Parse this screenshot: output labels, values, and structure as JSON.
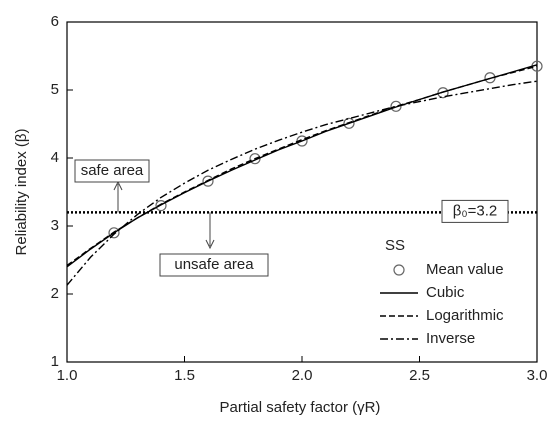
{
  "chart_data": {
    "type": "line",
    "xlabel": "Partial safety factor (γR)",
    "ylabel": "Reliability index (β)",
    "xlim": [
      1,
      3
    ],
    "ylim": [
      1,
      6
    ],
    "xticks": [
      {
        "value": 1,
        "label": "1.0"
      },
      {
        "value": 1.5,
        "label": "1.5"
      },
      {
        "value": 2,
        "label": "2.0"
      },
      {
        "value": 2.5,
        "label": "2.5"
      },
      {
        "value": 3,
        "label": "3.0"
      }
    ],
    "yticks": [
      1,
      2,
      3,
      4,
      5,
      6
    ],
    "legend_title": "SS",
    "legend_position": "lower right",
    "threshold": {
      "value": 3.2,
      "label": "β₀=3.2"
    },
    "annotations": [
      "safe area",
      "unsafe area"
    ],
    "series": [
      {
        "name": "Mean value",
        "kind": "scatter",
        "color": "#666666",
        "x": [
          1.2,
          1.4,
          1.6,
          1.8,
          2.0,
          2.2,
          2.4,
          2.6,
          2.8,
          3.0
        ],
        "values": [
          2.9,
          3.3,
          3.66,
          3.99,
          4.25,
          4.51,
          4.76,
          4.96,
          5.18,
          5.35
        ]
      },
      {
        "name": "Cubic",
        "kind": "line",
        "dash": "solid",
        "color": "#000000",
        "x": [
          1.0,
          1.1,
          1.2,
          1.3,
          1.4,
          1.5,
          1.6,
          1.7,
          1.8,
          1.9,
          2.0,
          2.1,
          2.2,
          2.3,
          2.4,
          2.5,
          2.6,
          2.7,
          2.8,
          2.9,
          3.0
        ],
        "values": [
          2.4,
          2.66,
          2.9,
          3.12,
          3.31,
          3.49,
          3.66,
          3.82,
          3.97,
          4.12,
          4.25,
          4.39,
          4.51,
          4.63,
          4.75,
          4.86,
          4.97,
          5.07,
          5.17,
          5.27,
          5.37
        ]
      },
      {
        "name": "Logarithmic",
        "kind": "line",
        "dash": "dashed",
        "color": "#000000",
        "x": [
          1.0,
          1.1,
          1.2,
          1.3,
          1.4,
          1.5,
          1.6,
          1.7,
          1.8,
          1.9,
          2.0,
          2.1,
          2.2,
          2.3,
          2.4,
          2.5,
          2.6,
          2.7,
          2.8,
          2.9,
          3.0
        ],
        "values": [
          2.42,
          2.67,
          2.91,
          3.12,
          3.32,
          3.5,
          3.67,
          3.84,
          3.99,
          4.13,
          4.27,
          4.4,
          4.52,
          4.64,
          4.76,
          4.86,
          4.97,
          5.07,
          5.17,
          5.26,
          5.35
        ]
      },
      {
        "name": "Inverse",
        "kind": "line",
        "dash": "dashdot",
        "color": "#000000",
        "x": [
          1.0,
          1.1,
          1.2,
          1.3,
          1.4,
          1.5,
          1.6,
          1.7,
          1.8,
          1.9,
          2.0,
          2.1,
          2.2,
          2.3,
          2.4,
          2.5,
          2.6,
          2.7,
          2.8,
          2.9,
          3.0
        ],
        "values": [
          2.13,
          2.54,
          2.88,
          3.17,
          3.42,
          3.63,
          3.82,
          3.98,
          4.13,
          4.26,
          4.38,
          4.49,
          4.58,
          4.67,
          4.76,
          4.83,
          4.9,
          4.96,
          5.02,
          5.08,
          5.13
        ]
      }
    ]
  }
}
